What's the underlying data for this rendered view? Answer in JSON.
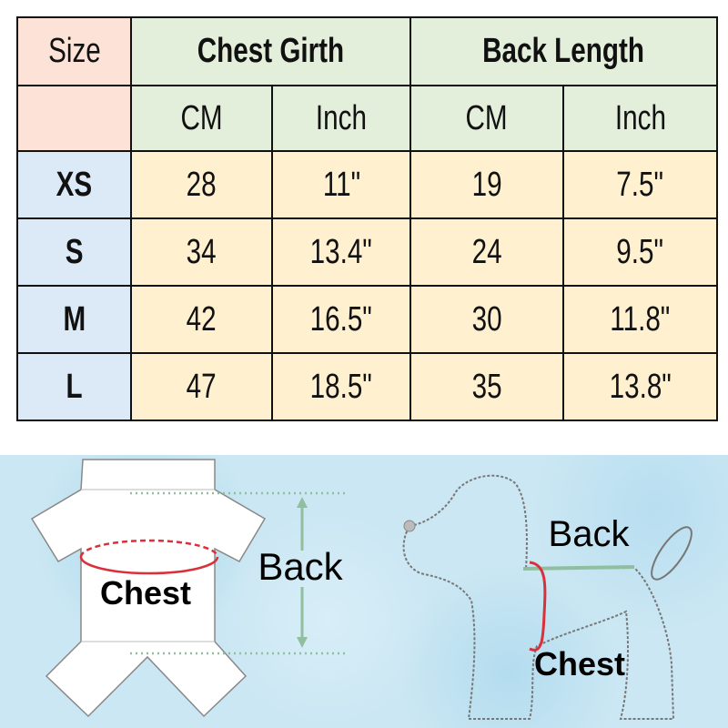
{
  "table": {
    "size_header": "Size",
    "group_headers": [
      "Chest Girth",
      "Back Length"
    ],
    "unit_headers": [
      "CM",
      "Inch",
      "CM",
      "Inch"
    ],
    "rows": [
      {
        "size": "XS",
        "values": [
          "28",
          "11\"",
          "19",
          "7.5\""
        ]
      },
      {
        "size": "S",
        "values": [
          "34",
          "13.4\"",
          "24",
          "9.5\""
        ]
      },
      {
        "size": "M",
        "values": [
          "42",
          "16.5\"",
          "30",
          "11.8\""
        ]
      },
      {
        "size": "L",
        "values": [
          "47",
          "18.5\"",
          "35",
          "13.8\""
        ]
      }
    ]
  },
  "diagram": {
    "garment_chest_label": "Chest",
    "garment_back_label": "Back",
    "dog_back_label": "Back",
    "dog_chest_label": "Chest"
  },
  "colors": {
    "size_header": "#fde2d7",
    "group_header": "#e3efdb",
    "size_cell": "#dce9f6",
    "value_cell": "#fff0cf",
    "chest_line": "#d9303a",
    "back_line": "#8fbf9f",
    "background": "#cbe7f3"
  }
}
